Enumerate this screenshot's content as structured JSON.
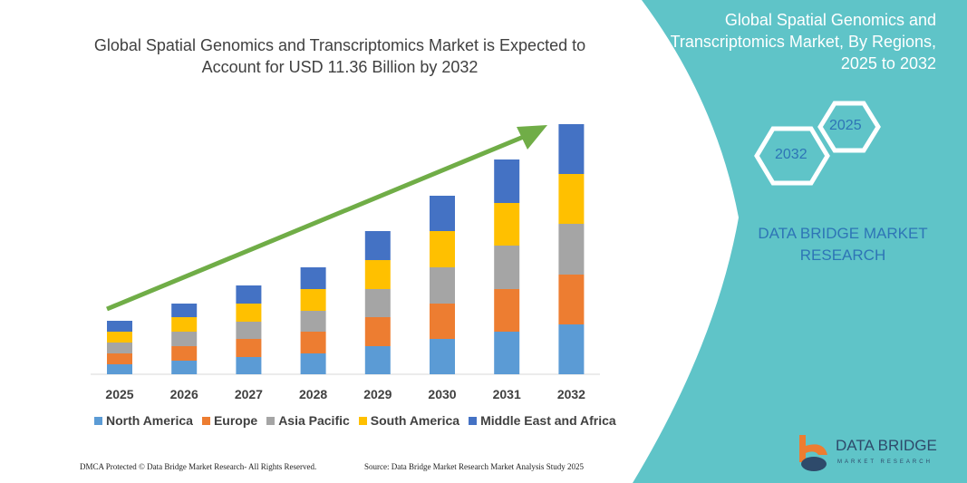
{
  "title": "Global Spatial Genomics and Transcriptomics Market is Expected to Account for USD 11.36 Billion by 2032",
  "side_panel": {
    "title": "Global Spatial Genomics and Transcriptomics Market, By Regions, 2025 to 2032",
    "hex_start": "2025",
    "hex_end": "2032",
    "brand": "DATA BRIDGE MARKET RESEARCH",
    "panel_color": "#5fc4c8"
  },
  "footer": {
    "copyright": "DMCA Protected © Data Bridge Market Research- All Rights Reserved.",
    "source": "Source: Data Bridge Market Research Market Analysis Study 2025"
  },
  "logo": {
    "name": "DATA BRIDGE",
    "sub": "MARKET RESEARCH"
  },
  "chart_data": {
    "type": "bar",
    "stacked": true,
    "title": "",
    "xlabel": "",
    "ylabel": "",
    "y_axis_shown": false,
    "grid": false,
    "legend_position": "bottom",
    "trend_arrow": {
      "color": "#70ad47",
      "direction": "up"
    },
    "categories": [
      "2025",
      "2026",
      "2027",
      "2028",
      "2029",
      "2030",
      "2031",
      "2032"
    ],
    "ylim": [
      0,
      280
    ],
    "series": [
      {
        "name": "North America",
        "color": "#5b9bd5",
        "values": [
          11,
          15,
          19,
          23,
          31,
          39,
          47,
          55
        ]
      },
      {
        "name": "Europe",
        "color": "#ed7d31",
        "values": [
          12,
          16,
          20,
          24,
          32,
          39,
          47,
          55
        ]
      },
      {
        "name": "Asia Pacific",
        "color": "#a5a5a5",
        "values": [
          12,
          16,
          19,
          23,
          31,
          40,
          48,
          56
        ]
      },
      {
        "name": "South America",
        "color": "#ffc000",
        "values": [
          12,
          16,
          20,
          24,
          32,
          40,
          47,
          55
        ]
      },
      {
        "name": "Middle East and Africa",
        "color": "#4472c4",
        "values": [
          12,
          15,
          20,
          24,
          32,
          39,
          48,
          55
        ]
      }
    ]
  }
}
